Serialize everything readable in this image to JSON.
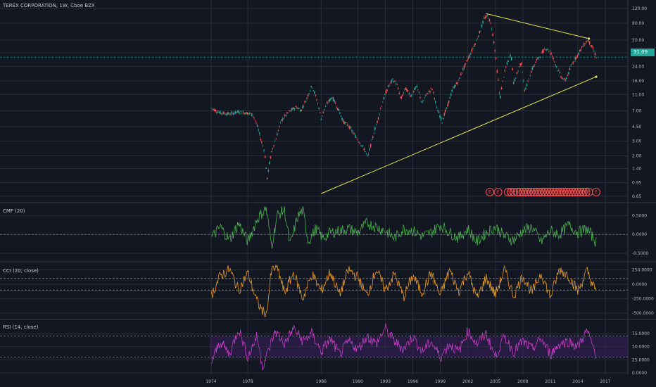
{
  "title": "TEREX CORPORATION, 1W, Cboe BZX",
  "last_price": "31.09",
  "colors": {
    "background": "#131722",
    "grid": "#2a2e39",
    "up": "#26a69a",
    "down": "#ef5350",
    "trendline": "#e4e44a",
    "cmf": "#4caf50",
    "cci": "#e69a28",
    "rsi": "#c03dc0",
    "rsi_band": "#3b1f5e",
    "earnings": "#ef5350"
  },
  "icons": [
    "earnings-marker-icon"
  ],
  "chart_data": [
    {
      "type": "candlestick",
      "name": "price",
      "y_scale": "log",
      "y_ticks": [
        "120.00",
        "80.00",
        "50.00",
        "35.00",
        "24.00",
        "16.00",
        "11.00",
        "7.00",
        "4.50",
        "3.00",
        "2.00",
        "1.40",
        "0.95",
        "0.65"
      ],
      "x_ticks": [
        "1974",
        "1978",
        "1986",
        "1990",
        "1993",
        "1996",
        "1999",
        "2002",
        "2005",
        "2008",
        "2011",
        "2014",
        "2017"
      ],
      "ylim": [
        0.6,
        125
      ],
      "last_value": 31.09,
      "series_points": [
        [
          1974.0,
          7.5
        ],
        [
          1975.0,
          6.6
        ],
        [
          1976.0,
          6.4
        ],
        [
          1977.0,
          6.8
        ],
        [
          1978.2,
          6.5
        ],
        [
          1978.6,
          6.1
        ],
        [
          1979.4,
          3.2
        ],
        [
          1979.8,
          2.3
        ],
        [
          1980.1,
          1.0
        ],
        [
          1980.6,
          2.2
        ],
        [
          1981.1,
          3.3
        ],
        [
          1981.7,
          5.4
        ],
        [
          1982.5,
          6.8
        ],
        [
          1983.3,
          7.8
        ],
        [
          1983.8,
          7.0
        ],
        [
          1984.4,
          9.6
        ],
        [
          1985.0,
          14.0
        ],
        [
          1985.4,
          10.5
        ],
        [
          1986.0,
          5.6
        ],
        [
          1986.6,
          8.4
        ],
        [
          1987.2,
          10.2
        ],
        [
          1987.8,
          7.5
        ],
        [
          1988.4,
          5.2
        ],
        [
          1989.0,
          4.6
        ],
        [
          1989.6,
          3.6
        ],
        [
          1990.2,
          2.9
        ],
        [
          1990.7,
          2.4
        ],
        [
          1991.1,
          1.9
        ],
        [
          1991.6,
          3.2
        ],
        [
          1992.2,
          5.5
        ],
        [
          1992.8,
          9.5
        ],
        [
          1993.3,
          13.5
        ],
        [
          1993.8,
          16.5
        ],
        [
          1994.2,
          15.0
        ],
        [
          1994.7,
          9.5
        ],
        [
          1995.2,
          13.0
        ],
        [
          1995.8,
          10.5
        ],
        [
          1996.4,
          13.8
        ],
        [
          1997.0,
          8.5
        ],
        [
          1997.5,
          11.0
        ],
        [
          1998.1,
          13.0
        ],
        [
          1998.6,
          7.5
        ],
        [
          1999.2,
          5.2
        ],
        [
          1999.8,
          8.0
        ],
        [
          2000.4,
          13.0
        ],
        [
          2001.0,
          16.0
        ],
        [
          2001.7,
          25.0
        ],
        [
          2002.3,
          34.0
        ],
        [
          2002.9,
          48.0
        ],
        [
          2003.4,
          66.0
        ],
        [
          2003.8,
          92.0
        ],
        [
          2004.2,
          98.0
        ],
        [
          2004.6,
          70.0
        ],
        [
          2004.9,
          42.0
        ],
        [
          2005.2,
          21.0
        ],
        [
          2005.5,
          9.0
        ],
        [
          2005.9,
          18.0
        ],
        [
          2006.3,
          26.0
        ],
        [
          2006.7,
          34.0
        ],
        [
          2007.0,
          15.0
        ],
        [
          2007.4,
          20.0
        ],
        [
          2007.8,
          27.0
        ],
        [
          2008.2,
          12.0
        ],
        [
          2008.6,
          16.0
        ],
        [
          2009.0,
          22.0
        ],
        [
          2009.5,
          28.0
        ],
        [
          2010.0,
          34.0
        ],
        [
          2010.5,
          40.0
        ],
        [
          2011.0,
          36.0
        ],
        [
          2011.4,
          28.0
        ],
        [
          2011.8,
          22.0
        ],
        [
          2012.2,
          18.0
        ],
        [
          2012.6,
          16.0
        ],
        [
          2013.0,
          20.0
        ],
        [
          2013.4,
          26.0
        ],
        [
          2013.9,
          32.0
        ],
        [
          2014.3,
          38.0
        ],
        [
          2014.8,
          46.0
        ],
        [
          2015.1,
          50.0
        ],
        [
          2015.4,
          44.0
        ],
        [
          2015.7,
          38.0
        ],
        [
          2016.0,
          31.0
        ]
      ],
      "trendlines": [
        {
          "from": [
            2004.0,
            104.0
          ],
          "to": [
            2015.2,
            52.0
          ]
        },
        {
          "from": [
            1986.0,
            0.7
          ],
          "to": [
            2016.0,
            18.0
          ]
        }
      ],
      "earnings_markers": [
        {
          "x": 2004.4,
          "label": "E"
        },
        {
          "x": 2005.3,
          "label": "E"
        },
        {
          "x": 2006.4,
          "label": "E"
        },
        {
          "x": 2006.7,
          "label": "E"
        },
        {
          "x": 2007.0,
          "label": "E"
        },
        {
          "x": 2007.4,
          "label": "E"
        },
        {
          "x": 2007.7,
          "label": "E"
        },
        {
          "x": 2008.0,
          "label": "E"
        },
        {
          "x": 2008.3,
          "label": "E"
        },
        {
          "x": 2008.6,
          "label": "E"
        },
        {
          "x": 2008.9,
          "label": "E"
        },
        {
          "x": 2009.2,
          "label": "E"
        },
        {
          "x": 2009.5,
          "label": "E"
        },
        {
          "x": 2009.8,
          "label": "E"
        },
        {
          "x": 2010.1,
          "label": "E"
        },
        {
          "x": 2010.4,
          "label": "E"
        },
        {
          "x": 2010.7,
          "label": "E"
        },
        {
          "x": 2011.0,
          "label": "E"
        },
        {
          "x": 2011.3,
          "label": "E"
        },
        {
          "x": 2011.6,
          "label": "E"
        },
        {
          "x": 2011.9,
          "label": "E"
        },
        {
          "x": 2012.2,
          "label": "E"
        },
        {
          "x": 2012.5,
          "label": "E"
        },
        {
          "x": 2012.8,
          "label": "E"
        },
        {
          "x": 2013.1,
          "label": "E"
        },
        {
          "x": 2013.4,
          "label": "E"
        },
        {
          "x": 2013.7,
          "label": "E"
        },
        {
          "x": 2014.0,
          "label": "E"
        },
        {
          "x": 2014.3,
          "label": "E"
        },
        {
          "x": 2014.6,
          "label": "E"
        },
        {
          "x": 2014.9,
          "label": "E"
        },
        {
          "x": 2015.2,
          "label": "E"
        },
        {
          "x": 2016.0,
          "label": "E"
        }
      ]
    },
    {
      "type": "line",
      "name": "CMF (20)",
      "y_ticks": [
        "0.5000",
        "0.0000",
        "-0.5000"
      ],
      "ylim": [
        -0.65,
        0.75
      ],
      "reference_lines": [
        0.0
      ],
      "series_points": [
        [
          1974.0,
          -0.1
        ],
        [
          1975.0,
          0.2
        ],
        [
          1976.0,
          -0.15
        ],
        [
          1977.0,
          0.3
        ],
        [
          1978.0,
          -0.2
        ],
        [
          1979.0,
          0.4
        ],
        [
          1980.0,
          0.7
        ],
        [
          1980.6,
          -0.3
        ],
        [
          1981.2,
          0.5
        ],
        [
          1982.0,
          0.65
        ],
        [
          1982.6,
          -0.3
        ],
        [
          1983.4,
          0.45
        ],
        [
          1984.0,
          0.65
        ],
        [
          1984.6,
          -0.2
        ],
        [
          1985.4,
          0.15
        ],
        [
          1986.2,
          -0.1
        ],
        [
          1987.0,
          0.05
        ],
        [
          1988.0,
          0.1
        ],
        [
          1989.0,
          0.15
        ],
        [
          1990.0,
          0.05
        ],
        [
          1991.0,
          0.3
        ],
        [
          1992.0,
          0.2
        ],
        [
          1993.0,
          0.1
        ],
        [
          1994.0,
          -0.1
        ],
        [
          1995.0,
          0.15
        ],
        [
          1996.0,
          0.1
        ],
        [
          1997.0,
          -0.05
        ],
        [
          1998.0,
          0.05
        ],
        [
          1999.0,
          0.25
        ],
        [
          2000.0,
          0.05
        ],
        [
          2001.0,
          -0.1
        ],
        [
          2002.0,
          0.15
        ],
        [
          2003.0,
          -0.2
        ],
        [
          2004.0,
          0.05
        ],
        [
          2005.0,
          0.2
        ],
        [
          2006.0,
          -0.05
        ],
        [
          2007.0,
          -0.15
        ],
        [
          2008.0,
          0.1
        ],
        [
          2009.0,
          0.2
        ],
        [
          2010.0,
          -0.2
        ],
        [
          2011.0,
          0.1
        ],
        [
          2012.0,
          0.0
        ],
        [
          2013.0,
          0.25
        ],
        [
          2014.0,
          0.05
        ],
        [
          2015.0,
          0.15
        ],
        [
          2016.0,
          -0.2
        ]
      ]
    },
    {
      "type": "line",
      "name": "CCI (20, close)",
      "y_ticks": [
        "250.0000",
        "0.0000",
        "-250.0000",
        "-500.0000"
      ],
      "ylim": [
        -560,
        330
      ],
      "reference_lines": [
        100,
        -100
      ],
      "series_points": [
        [
          1974.0,
          -200
        ],
        [
          1975.0,
          150
        ],
        [
          1976.0,
          260
        ],
        [
          1977.0,
          -100
        ],
        [
          1978.0,
          200
        ],
        [
          1979.0,
          -300
        ],
        [
          1980.0,
          -560
        ],
        [
          1980.6,
          250
        ],
        [
          1981.2,
          300
        ],
        [
          1982.0,
          -150
        ],
        [
          1983.0,
          200
        ],
        [
          1984.0,
          -250
        ],
        [
          1985.0,
          180
        ],
        [
          1986.0,
          -120
        ],
        [
          1987.0,
          220
        ],
        [
          1988.0,
          -180
        ],
        [
          1989.0,
          250
        ],
        [
          1990.0,
          120
        ],
        [
          1991.0,
          -200
        ],
        [
          1992.0,
          260
        ],
        [
          1993.0,
          -100
        ],
        [
          1994.0,
          180
        ],
        [
          1995.0,
          -220
        ],
        [
          1996.0,
          150
        ],
        [
          1997.0,
          -150
        ],
        [
          1998.0,
          200
        ],
        [
          1999.0,
          -200
        ],
        [
          2000.0,
          250
        ],
        [
          2001.0,
          -120
        ],
        [
          2002.0,
          220
        ],
        [
          2003.0,
          -250
        ],
        [
          2004.0,
          120
        ],
        [
          2005.0,
          -180
        ],
        [
          2006.0,
          250
        ],
        [
          2007.0,
          -200
        ],
        [
          2008.0,
          150
        ],
        [
          2009.0,
          -150
        ],
        [
          2010.0,
          200
        ],
        [
          2011.0,
          -220
        ],
        [
          2012.0,
          260
        ],
        [
          2013.0,
          150
        ],
        [
          2014.0,
          -120
        ],
        [
          2015.0,
          230
        ],
        [
          2016.0,
          -150
        ]
      ]
    },
    {
      "type": "line",
      "name": "RSI (14, close)",
      "y_ticks": [
        "75.0000",
        "50.0000",
        "25.0000",
        "0.0000"
      ],
      "ylim": [
        0,
        95
      ],
      "reference_lines": [
        70,
        30
      ],
      "band": [
        30,
        70
      ],
      "series_points": [
        [
          1974.0,
          20
        ],
        [
          1975.0,
          60
        ],
        [
          1976.0,
          35
        ],
        [
          1977.0,
          85
        ],
        [
          1978.0,
          30
        ],
        [
          1979.0,
          70
        ],
        [
          1979.6,
          12
        ],
        [
          1980.2,
          40
        ],
        [
          1981.0,
          80
        ],
        [
          1982.0,
          55
        ],
        [
          1983.0,
          85
        ],
        [
          1984.0,
          60
        ],
        [
          1985.0,
          75
        ],
        [
          1986.0,
          40
        ],
        [
          1987.0,
          65
        ],
        [
          1988.0,
          35
        ],
        [
          1989.0,
          60
        ],
        [
          1990.0,
          45
        ],
        [
          1991.0,
          70
        ],
        [
          1992.0,
          55
        ],
        [
          1993.0,
          85
        ],
        [
          1994.0,
          60
        ],
        [
          1995.0,
          45
        ],
        [
          1996.0,
          70
        ],
        [
          1997.0,
          40
        ],
        [
          1998.0,
          60
        ],
        [
          1999.0,
          30
        ],
        [
          2000.0,
          55
        ],
        [
          2001.0,
          40
        ],
        [
          2002.0,
          80
        ],
        [
          2003.0,
          55
        ],
        [
          2004.0,
          75
        ],
        [
          2005.0,
          30
        ],
        [
          2006.0,
          70
        ],
        [
          2007.0,
          40
        ],
        [
          2008.0,
          60
        ],
        [
          2009.0,
          45
        ],
        [
          2010.0,
          65
        ],
        [
          2011.0,
          35
        ],
        [
          2012.0,
          55
        ],
        [
          2013.0,
          60
        ],
        [
          2014.0,
          50
        ],
        [
          2015.0,
          80
        ],
        [
          2016.0,
          35
        ]
      ]
    }
  ]
}
